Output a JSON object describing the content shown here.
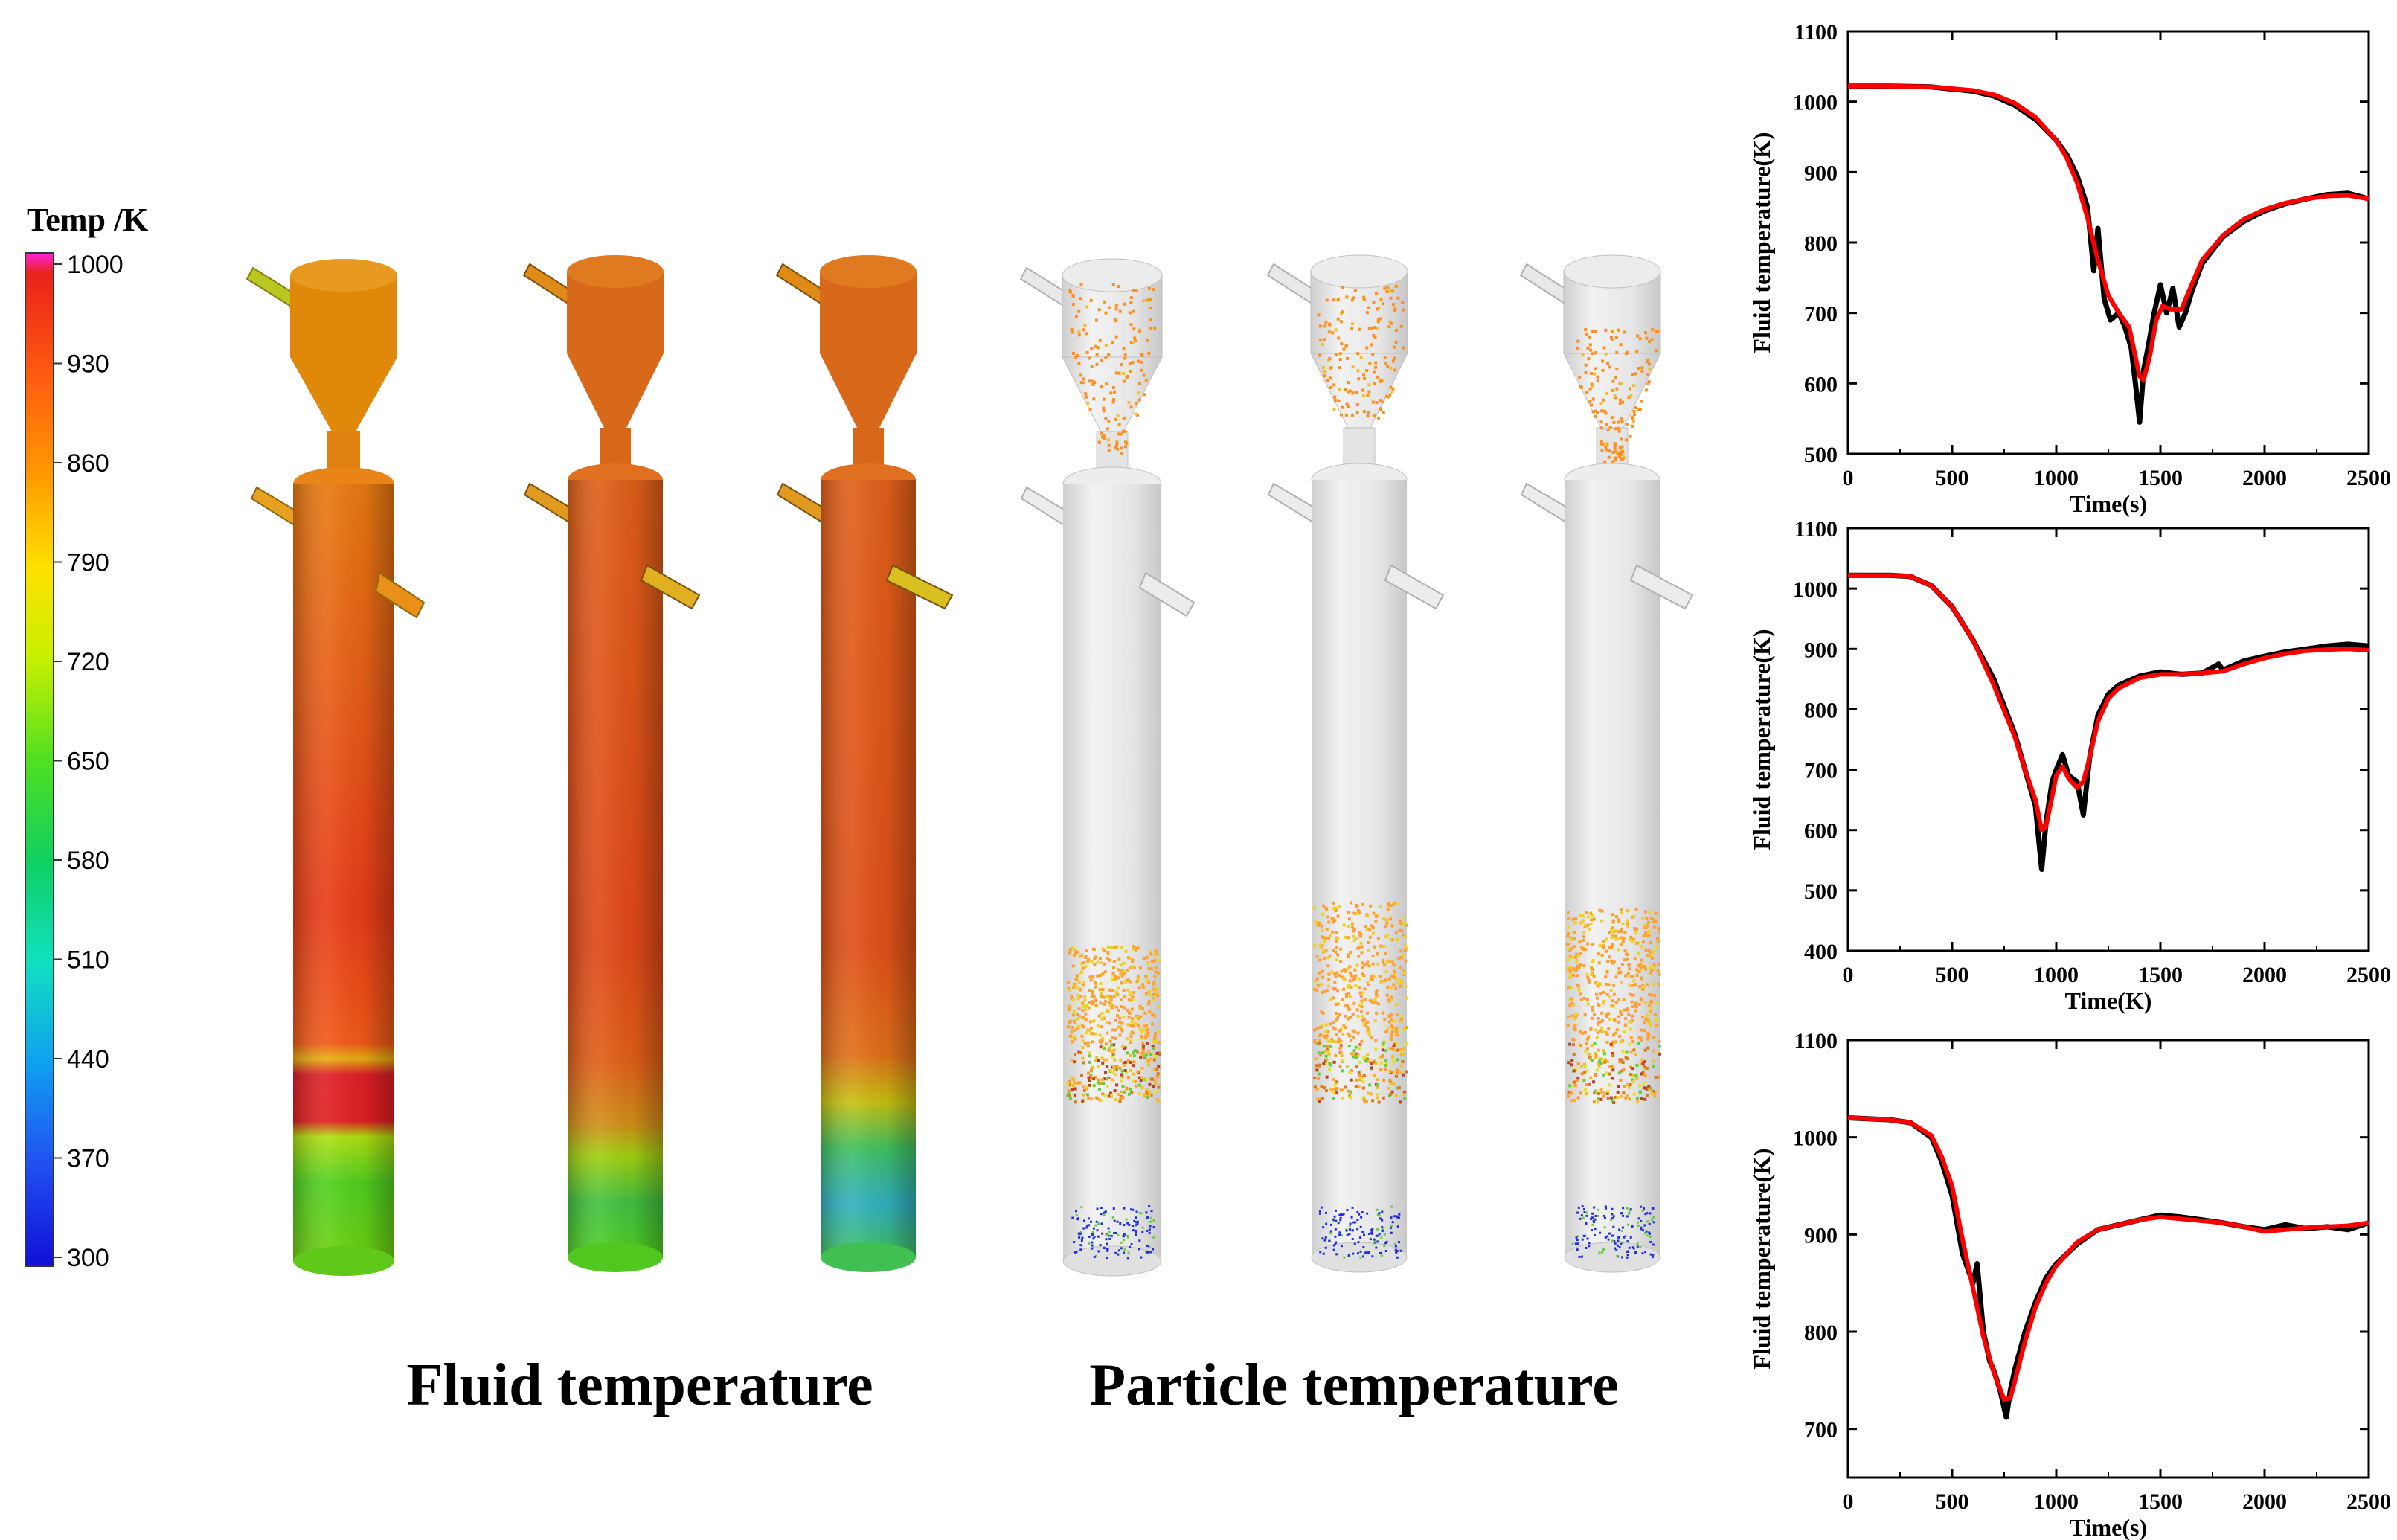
{
  "colorbar": {
    "title": "Temp /K",
    "ticks": [
      "1000",
      "930",
      "860",
      "790",
      "720",
      "650",
      "580",
      "510",
      "440",
      "370",
      "300"
    ],
    "stops": [
      "#ff22dd",
      "#e8221a",
      "#ff5a10",
      "#ff9a00",
      "#ffe000",
      "#c8f000",
      "#50e020",
      "#10d060",
      "#10e0c0",
      "#10a0f0",
      "#2050f0",
      "#1010d8"
    ]
  },
  "captions": {
    "fluid": "Fluid temperature",
    "particle": "Particle temperature"
  },
  "colors": {
    "black_series": "#000000",
    "red_series": "#ff0000",
    "gray_vessel": "#e6e6e6"
  },
  "chart_data": [
    {
      "type": "line",
      "ylabel": "Fluid temperature(K)",
      "xlabel": "Time(s)",
      "xlim": [
        0,
        2500
      ],
      "ylim": [
        500,
        1100
      ],
      "xticks": [
        "0",
        "500",
        "1000",
        "1500",
        "2000",
        "2500"
      ],
      "yticks": [
        "500",
        "600",
        "700",
        "800",
        "900",
        "1000",
        "1100"
      ],
      "series": [
        {
          "color": "#000000",
          "x": [
            0,
            200,
            400,
            600,
            700,
            800,
            900,
            1000,
            1050,
            1100,
            1150,
            1180,
            1200,
            1230,
            1260,
            1300,
            1330,
            1360,
            1380,
            1400,
            1420,
            1440,
            1470,
            1500,
            1530,
            1560,
            1590,
            1620,
            1650,
            1700,
            1800,
            1900,
            2000,
            2100,
            2200,
            2300,
            2400,
            2500
          ],
          "y": [
            1022,
            1022,
            1021,
            1015,
            1008,
            995,
            975,
            945,
            925,
            895,
            850,
            760,
            820,
            720,
            690,
            700,
            680,
            650,
            600,
            545,
            620,
            650,
            700,
            740,
            700,
            735,
            680,
            700,
            730,
            770,
            808,
            830,
            845,
            855,
            862,
            868,
            870,
            862
          ]
        },
        {
          "color": "#ff0000",
          "x": [
            0,
            200,
            400,
            600,
            700,
            800,
            900,
            1000,
            1050,
            1100,
            1150,
            1200,
            1250,
            1300,
            1350,
            1400,
            1420,
            1450,
            1480,
            1510,
            1550,
            1600,
            1650,
            1700,
            1800,
            1900,
            2000,
            2100,
            2200,
            2300,
            2400,
            2500
          ],
          "y": [
            1022,
            1022,
            1021,
            1016,
            1010,
            998,
            978,
            945,
            920,
            885,
            835,
            775,
            725,
            700,
            680,
            610,
            605,
            640,
            690,
            710,
            705,
            705,
            740,
            775,
            810,
            833,
            847,
            856,
            862,
            866,
            867,
            862
          ]
        }
      ]
    },
    {
      "type": "line",
      "ylabel": "Fluid temperature(K)",
      "xlabel": "Time(K)",
      "xlim": [
        0,
        2500
      ],
      "ylim": [
        400,
        1100
      ],
      "xticks": [
        "0",
        "500",
        "1000",
        "1500",
        "2000",
        "2500"
      ],
      "yticks": [
        "400",
        "500",
        "600",
        "700",
        "800",
        "900",
        "1000",
        "1100"
      ],
      "series": [
        {
          "color": "#000000",
          "x": [
            0,
            200,
            300,
            400,
            500,
            600,
            700,
            800,
            850,
            900,
            930,
            950,
            980,
            1000,
            1030,
            1060,
            1100,
            1130,
            1160,
            1200,
            1250,
            1300,
            1400,
            1500,
            1600,
            1700,
            1780,
            1800,
            1900,
            2000,
            2100,
            2200,
            2300,
            2400,
            2500
          ],
          "y": [
            1022,
            1022,
            1020,
            1005,
            970,
            915,
            850,
            760,
            700,
            640,
            535,
            610,
            680,
            700,
            725,
            690,
            680,
            625,
            720,
            790,
            825,
            840,
            855,
            862,
            858,
            860,
            875,
            865,
            880,
            888,
            895,
            900,
            905,
            908,
            905
          ]
        },
        {
          "color": "#ff0000",
          "x": [
            0,
            200,
            300,
            400,
            500,
            600,
            700,
            800,
            850,
            900,
            930,
            950,
            980,
            1000,
            1030,
            1060,
            1100,
            1130,
            1160,
            1200,
            1250,
            1300,
            1400,
            1500,
            1600,
            1700,
            1800,
            1900,
            2000,
            2100,
            2200,
            2300,
            2400,
            2500
          ],
          "y": [
            1022,
            1022,
            1020,
            1005,
            970,
            915,
            840,
            755,
            700,
            650,
            600,
            605,
            655,
            690,
            705,
            685,
            670,
            680,
            720,
            780,
            818,
            835,
            852,
            858,
            858,
            860,
            863,
            875,
            885,
            892,
            897,
            899,
            900,
            898
          ]
        }
      ]
    },
    {
      "type": "line",
      "ylabel": "Fluid temperature(K)",
      "xlabel": "Time(s)",
      "xlim": [
        0,
        2500
      ],
      "ylim": [
        650,
        1100
      ],
      "xticks": [
        "0",
        "500",
        "1000",
        "1500",
        "2000",
        "2500"
      ],
      "yticks": [
        "700",
        "800",
        "900",
        "1000",
        "1100"
      ],
      "series": [
        {
          "color": "#000000",
          "x": [
            0,
            200,
            300,
            400,
            450,
            500,
            550,
            600,
            620,
            650,
            680,
            700,
            730,
            760,
            780,
            800,
            850,
            900,
            950,
            1000,
            1100,
            1200,
            1300,
            1400,
            1500,
            1600,
            1700,
            1800,
            1900,
            2000,
            2100,
            2200,
            2300,
            2400,
            2500
          ],
          "y": [
            1020,
            1018,
            1015,
            1000,
            975,
            940,
            880,
            850,
            870,
            800,
            770,
            760,
            740,
            712,
            740,
            760,
            800,
            830,
            855,
            870,
            890,
            905,
            910,
            915,
            920,
            918,
            915,
            912,
            908,
            905,
            910,
            906,
            908,
            905,
            912
          ]
        },
        {
          "color": "#ff0000",
          "x": [
            0,
            200,
            300,
            400,
            450,
            500,
            550,
            600,
            650,
            700,
            750,
            780,
            800,
            850,
            900,
            950,
            1000,
            1100,
            1200,
            1300,
            1400,
            1500,
            1600,
            1700,
            1800,
            1900,
            2000,
            2100,
            2200,
            2300,
            2400,
            2500
          ],
          "y": [
            1020,
            1018,
            1015,
            1002,
            980,
            950,
            895,
            845,
            795,
            758,
            730,
            732,
            748,
            790,
            825,
            850,
            868,
            892,
            905,
            910,
            915,
            918,
            916,
            914,
            912,
            908,
            903,
            905,
            907,
            908,
            909,
            912
          ]
        }
      ]
    }
  ]
}
